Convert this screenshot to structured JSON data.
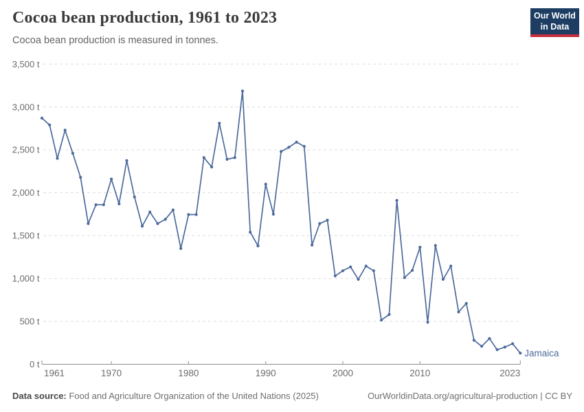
{
  "header": {
    "title": "Cocoa bean production, 1961 to 2023",
    "subtitle": "Cocoa bean production is measured in tonnes.",
    "logo_line1": "Our World",
    "logo_line2": "in Data"
  },
  "chart_data": {
    "type": "line",
    "title": "Cocoa bean production, 1961 to 2023",
    "ylabel": "tonnes",
    "xlabel": "",
    "grid": "dashed-horizontal",
    "legend_position": "end-of-line-label",
    "xlim": [
      1961,
      2023
    ],
    "ylim": [
      0,
      3500
    ],
    "x_ticks": [
      1961,
      1970,
      1980,
      1990,
      2000,
      2010,
      2023
    ],
    "x_tick_labels": [
      "1961",
      "1970",
      "1980",
      "1990",
      "2000",
      "2010",
      "2023"
    ],
    "y_ticks": [
      0,
      500,
      1000,
      1500,
      2000,
      2500,
      3000,
      3500
    ],
    "y_tick_labels": [
      "0 t",
      "500 t",
      "1,000 t",
      "1,500 t",
      "2,000 t",
      "2,500 t",
      "3,000 t",
      "3,500 t"
    ],
    "series": [
      {
        "name": "Jamaica",
        "color": "#4c6a9c",
        "x": [
          1961,
          1962,
          1963,
          1964,
          1965,
          1966,
          1967,
          1968,
          1969,
          1970,
          1971,
          1972,
          1973,
          1974,
          1975,
          1976,
          1977,
          1978,
          1979,
          1980,
          1981,
          1982,
          1983,
          1984,
          1985,
          1986,
          1987,
          1988,
          1989,
          1990,
          1991,
          1992,
          1993,
          1994,
          1995,
          1996,
          1997,
          1998,
          1999,
          2000,
          2001,
          2002,
          2003,
          2004,
          2005,
          2006,
          2007,
          2008,
          2009,
          2010,
          2011,
          2012,
          2013,
          2014,
          2015,
          2016,
          2017,
          2018,
          2019,
          2020,
          2021,
          2022,
          2023
        ],
        "values": [
          2870,
          2790,
          2400,
          2730,
          2460,
          2180,
          1640,
          1860,
          1860,
          2160,
          1870,
          2375,
          1950,
          1610,
          1775,
          1640,
          1690,
          1800,
          1350,
          1745,
          1745,
          2410,
          2300,
          2810,
          2390,
          2410,
          3185,
          1540,
          1380,
          2100,
          1750,
          2480,
          2530,
          2590,
          2540,
          1390,
          1640,
          1680,
          1030,
          1090,
          1135,
          990,
          1145,
          1090,
          515,
          580,
          1910,
          1010,
          1095,
          1365,
          490,
          1385,
          990,
          1145,
          610,
          710,
          280,
          210,
          300,
          170,
          200,
          240,
          130
        ]
      }
    ]
  },
  "footer": {
    "source_label": "Data source:",
    "source_text": " Food and Agriculture Organization of the United Nations (2025)",
    "link_text": "OurWorldinData.org/agricultural-production | CC BY"
  },
  "colors": {
    "series_blue": "#4c6a9c",
    "logo_navy": "#1d3d63",
    "logo_red": "#c5303e",
    "grid_gray": "#dddddd",
    "axis_gray": "#8f8f8f",
    "tick_label_gray": "#6b6b6b"
  }
}
